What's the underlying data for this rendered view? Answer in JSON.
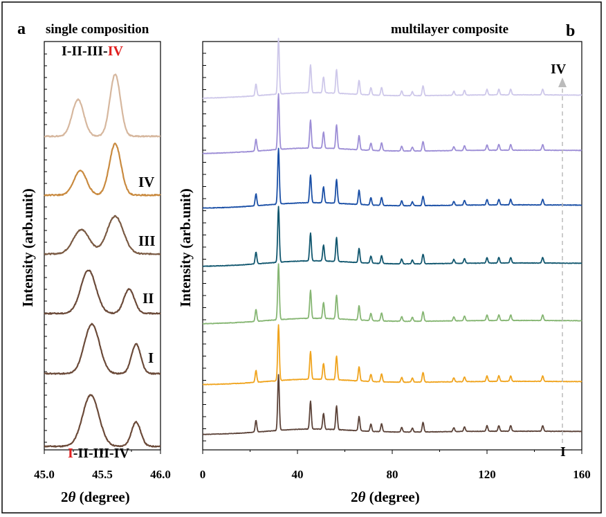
{
  "chart_data": [
    {
      "panel_letter": "a",
      "title": "single composition",
      "type": "line",
      "xlabel_sym": "2",
      "xlabel_theta": "θ",
      "xlabel_unit": " (degree)",
      "ylabel": "Intensity (arb.unit)",
      "xlim": [
        45.0,
        46.0
      ],
      "x_ticks": [
        "45.0",
        "45.5",
        "46.0"
      ],
      "top_label_plain": "I-II-III-",
      "top_label_highlight": "IV",
      "bottom_label_highlight": "I",
      "bottom_label_plain": "-II-III-IV",
      "series": [
        {
          "label": "",
          "color": "#6b4a39",
          "peaks": [
            {
              "x": 45.4,
              "h": 0.95,
              "w": 0.07
            },
            {
              "x": 45.79,
              "h": 0.45,
              "w": 0.04
            }
          ]
        },
        {
          "label": "I",
          "color": "#6b4a39",
          "peaks": [
            {
              "x": 45.41,
              "h": 0.92,
              "w": 0.065
            },
            {
              "x": 45.79,
              "h": 0.55,
              "w": 0.04
            }
          ]
        },
        {
          "label": "II",
          "color": "#6b4a39",
          "peaks": [
            {
              "x": 45.38,
              "h": 0.8,
              "w": 0.065
            },
            {
              "x": 45.73,
              "h": 0.45,
              "w": 0.045
            }
          ]
        },
        {
          "label": "III",
          "color": "#7a5a43",
          "peaks": [
            {
              "x": 45.32,
              "h": 0.45,
              "w": 0.07
            },
            {
              "x": 45.61,
              "h": 0.7,
              "w": 0.07
            }
          ]
        },
        {
          "label": "IV",
          "color": "#c98a3f",
          "peaks": [
            {
              "x": 45.31,
              "h": 0.45,
              "w": 0.055
            },
            {
              "x": 45.61,
              "h": 0.95,
              "w": 0.05
            }
          ]
        },
        {
          "label": "",
          "color": "#d6b79e",
          "peaks": [
            {
              "x": 45.29,
              "h": 0.68,
              "w": 0.05
            },
            {
              "x": 45.61,
              "h": 1.15,
              "w": 0.045
            }
          ]
        }
      ],
      "label_color": "#000000",
      "highlight_color": "#e02020"
    },
    {
      "panel_letter": "b",
      "title": "multilayer composite",
      "type": "line",
      "xlabel_sym": "2",
      "xlabel_theta": "θ",
      "xlabel_unit": " (degree)",
      "ylabel": "Intensity (arb.unit)",
      "xlim": [
        0,
        160
      ],
      "x_ticks": [
        "0",
        "40",
        "80",
        "120",
        "160"
      ],
      "arrow_top_label": "IV",
      "arrow_bottom_label": "I",
      "peak_positions": [
        22.5,
        32.0,
        45.5,
        51.0,
        56.5,
        66.0,
        71.0,
        75.5,
        84.0,
        88.5,
        93.0,
        106.0,
        110.5,
        120.0,
        125.0,
        130.0,
        143.5
      ],
      "peak_heights": [
        0.15,
        0.7,
        0.35,
        0.2,
        0.3,
        0.18,
        0.09,
        0.1,
        0.06,
        0.05,
        0.12,
        0.05,
        0.06,
        0.07,
        0.07,
        0.07,
        0.07
      ],
      "series": [
        {
          "color": "#5b4238"
        },
        {
          "color": "#f0a41e"
        },
        {
          "color": "#86b673"
        },
        {
          "color": "#10566e"
        },
        {
          "color": "#1a4fa6"
        },
        {
          "color": "#9d8ed6"
        },
        {
          "color": "#cec8ea"
        }
      ]
    }
  ]
}
